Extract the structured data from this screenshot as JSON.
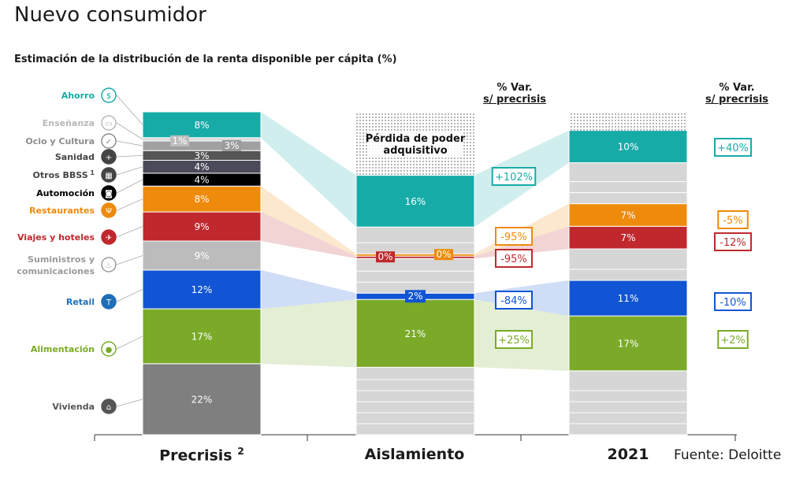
{
  "title": "Nuevo consumidor",
  "source": "Fuente: Deloitte",
  "var_header_line1": "% Var.",
  "var_header_line2": "s/ precrisis",
  "chart_data": {
    "type": "bar",
    "stacked": true,
    "normalized": true,
    "title": "Estimación de la distribución de la renta disponible per cápita (%)",
    "categories": [
      "Precrisis",
      "Aislamiento",
      "2021"
    ],
    "category_footnotes": [
      "2",
      "",
      ""
    ],
    "loss_label": "Pérdida de poder adquisitivo",
    "series": [
      {
        "name": "Vivienda",
        "color": "#7f7f7f",
        "icon": "house-icon",
        "values": [
          22,
          null,
          null
        ],
        "labels": [
          "22%",
          "",
          ""
        ]
      },
      {
        "name": "Alimentación",
        "color": "#7aaa28",
        "icon": "apple-icon",
        "values": [
          17,
          21,
          17
        ],
        "labels": [
          "17%",
          "21%",
          "17%"
        ],
        "var_aislamiento": "+25%",
        "var_2021": "+2%"
      },
      {
        "name": "Retail",
        "color": "#1155d4",
        "icon": "tshirt-icon",
        "values": [
          12,
          2,
          11
        ],
        "labels": [
          "12%",
          "2%",
          "11%"
        ],
        "var_aislamiento": "-84%",
        "var_2021": "-10%"
      },
      {
        "name": "Suministros y comunicaciones",
        "color": "#bcbcbc",
        "icon": "flame-icon",
        "values": [
          9,
          null,
          null
        ],
        "labels": [
          "9%",
          "",
          ""
        ]
      },
      {
        "name": "Viajes y hoteles",
        "color": "#c0282d",
        "icon": "plane-icon",
        "values": [
          9,
          0,
          7
        ],
        "labels": [
          "9%",
          "0%",
          "7%"
        ],
        "var_aislamiento": "-95%",
        "var_2021": "-12%"
      },
      {
        "name": "Restaurantes",
        "color": "#ee8a0c",
        "icon": "cutlery-icon",
        "values": [
          8,
          0,
          7
        ],
        "labels": [
          "8%",
          "0%",
          "7%"
        ],
        "var_aislamiento": "-95%",
        "var_2021": "-5%"
      },
      {
        "name": "Automoción",
        "color": "#000000",
        "icon": "car-icon",
        "values": [
          4,
          null,
          null
        ],
        "labels": [
          "4%",
          "",
          ""
        ]
      },
      {
        "name": "Otros BBSS",
        "footnote": "1",
        "color": "#4a4a5a",
        "icon": "grid-icon",
        "values": [
          4,
          null,
          null
        ],
        "labels": [
          "4%",
          "",
          ""
        ]
      },
      {
        "name": "Sanidad",
        "color": "#555555",
        "icon": "medkit-icon",
        "values": [
          3,
          null,
          null
        ],
        "labels": [
          "3%",
          "",
          ""
        ]
      },
      {
        "name": "Ocio y Cultura",
        "color": "#a0a0a0",
        "icon": "check-icon",
        "values": [
          3,
          null,
          null
        ],
        "labels": [
          "3%",
          "",
          ""
        ]
      },
      {
        "name": "Enseñanza",
        "color": "#d9d9d9",
        "icon": "book-icon",
        "values": [
          1,
          null,
          null
        ],
        "labels": [
          "1%",
          "",
          ""
        ]
      },
      {
        "name": "Ahorro",
        "color": "#17aba8",
        "icon": "moneybag-icon",
        "values": [
          8,
          16,
          10
        ],
        "labels": [
          "8%",
          "16%",
          "10%"
        ],
        "var_aislamiento": "+102%",
        "var_2021": "+40%"
      }
    ]
  }
}
